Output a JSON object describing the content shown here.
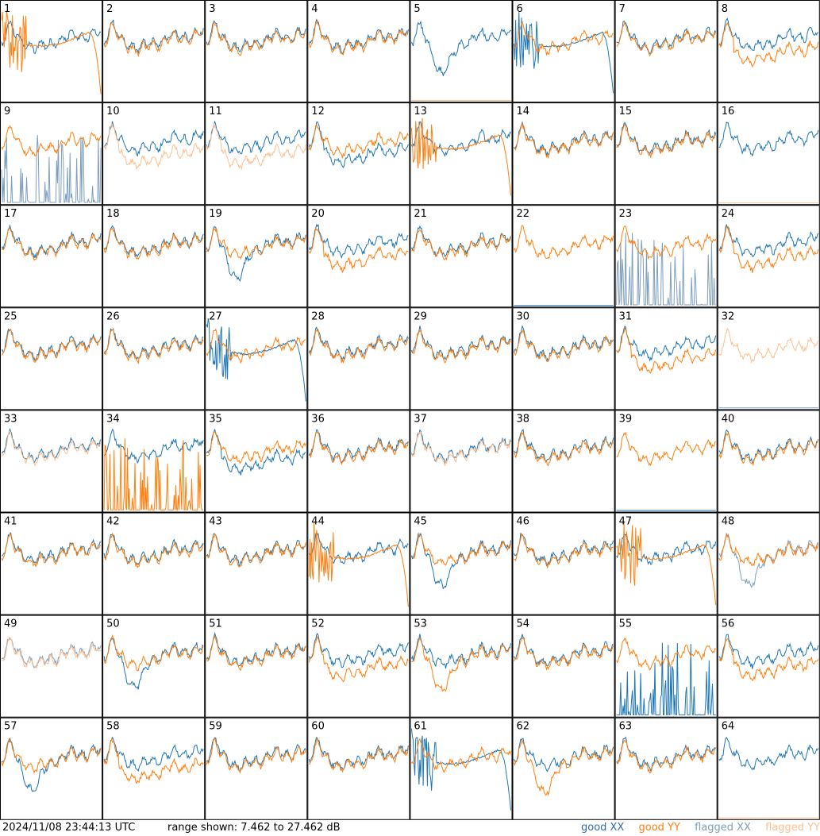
{
  "chart_data": {
    "type": "line",
    "grid": "8x8 small multiples, one panel per tile",
    "panel_labels": [
      "1",
      "2",
      "3",
      "4",
      "5",
      "6",
      "7",
      "8",
      "9",
      "10",
      "11",
      "12",
      "13",
      "14",
      "15",
      "16",
      "17",
      "18",
      "19",
      "20",
      "21",
      "22",
      "23",
      "24",
      "25",
      "26",
      "27",
      "28",
      "29",
      "30",
      "31",
      "32",
      "33",
      "34",
      "35",
      "36",
      "37",
      "38",
      "39",
      "40",
      "41",
      "42",
      "43",
      "44",
      "45",
      "46",
      "47",
      "48",
      "49",
      "50",
      "51",
      "52",
      "53",
      "54",
      "55",
      "56",
      "57",
      "58",
      "59",
      "60",
      "61",
      "62",
      "63",
      "64"
    ],
    "y_range_db": [
      7.462,
      27.462
    ],
    "legend": [
      "good XX",
      "good YY",
      "flagged XX",
      "flagged YY"
    ],
    "colors": {
      "good_xx": "#1f77b4",
      "good_yy": "#ff7f0e",
      "flagged_xx": "#7f9fbf",
      "flagged_yy": "#ffbf8f"
    },
    "panels": {
      "1": {
        "xx": "normal",
        "yy": "rolloff",
        "xx_flag": false,
        "yy_flag": false
      },
      "2": {
        "xx": "normal",
        "yy": "normal",
        "xx_flag": false,
        "yy_flag": false
      },
      "3": {
        "xx": "normal",
        "yy": "normal",
        "xx_flag": false,
        "yy_flag": false
      },
      "4": {
        "xx": "normal",
        "yy": "normal",
        "xx_flag": false,
        "yy_flag": false
      },
      "5": {
        "xx": "dip",
        "yy": "dead",
        "xx_flag": false,
        "yy_flag": true
      },
      "6": {
        "xx": "rolloff",
        "yy": "normal",
        "xx_flag": false,
        "yy_flag": false
      },
      "7": {
        "xx": "normal",
        "yy": "normal",
        "xx_flag": false,
        "yy_flag": false
      },
      "8": {
        "xx": "normal",
        "yy": "low",
        "xx_flag": false,
        "yy_flag": false
      },
      "9": {
        "xx": "spikes",
        "yy": "normal",
        "xx_flag": true,
        "yy_flag": false
      },
      "10": {
        "xx": "normal",
        "yy": "low",
        "xx_flag": false,
        "yy_flag": true
      },
      "11": {
        "xx": "normal",
        "yy": "low",
        "xx_flag": false,
        "yy_flag": true
      },
      "12": {
        "xx": "low",
        "yy": "normal",
        "xx_flag": false,
        "yy_flag": false
      },
      "13": {
        "xx": "normal",
        "yy": "rolloff",
        "xx_flag": false,
        "yy_flag": false
      },
      "14": {
        "xx": "normal",
        "yy": "normal",
        "xx_flag": false,
        "yy_flag": false
      },
      "15": {
        "xx": "normal",
        "yy": "normal",
        "xx_flag": false,
        "yy_flag": false
      },
      "16": {
        "xx": "normal",
        "yy": "dead",
        "xx_flag": false,
        "yy_flag": true
      },
      "17": {
        "xx": "normal",
        "yy": "normal",
        "xx_flag": false,
        "yy_flag": false
      },
      "18": {
        "xx": "normal",
        "yy": "normal",
        "xx_flag": false,
        "yy_flag": false
      },
      "19": {
        "xx": "dip",
        "yy": "normal",
        "xx_flag": false,
        "yy_flag": false
      },
      "20": {
        "xx": "normal",
        "yy": "low",
        "xx_flag": false,
        "yy_flag": false
      },
      "21": {
        "xx": "normal",
        "yy": "normal",
        "xx_flag": false,
        "yy_flag": false
      },
      "22": {
        "xx": "dead",
        "yy": "normal",
        "xx_flag": false,
        "yy_flag": false
      },
      "23": {
        "xx": "spikes",
        "yy": "normal",
        "xx_flag": true,
        "yy_flag": false
      },
      "24": {
        "xx": "normal",
        "yy": "low",
        "xx_flag": false,
        "yy_flag": false
      },
      "25": {
        "xx": "normal",
        "yy": "normal",
        "xx_flag": false,
        "yy_flag": false
      },
      "26": {
        "xx": "normal",
        "yy": "normal",
        "xx_flag": false,
        "yy_flag": false
      },
      "27": {
        "xx": "rolloff",
        "yy": "normal",
        "xx_flag": false,
        "yy_flag": false
      },
      "28": {
        "xx": "normal",
        "yy": "normal",
        "xx_flag": false,
        "yy_flag": false
      },
      "29": {
        "xx": "normal",
        "yy": "normal",
        "xx_flag": false,
        "yy_flag": false
      },
      "30": {
        "xx": "normal",
        "yy": "normal",
        "xx_flag": false,
        "yy_flag": false
      },
      "31": {
        "xx": "normal",
        "yy": "low",
        "xx_flag": false,
        "yy_flag": false
      },
      "32": {
        "xx": "dead",
        "yy": "normal",
        "xx_flag": true,
        "yy_flag": true
      },
      "33": {
        "xx": "normal",
        "yy": "normal",
        "xx_flag": false,
        "yy_flag": true
      },
      "34": {
        "xx": "normal",
        "yy": "spikes",
        "xx_flag": false,
        "yy_flag": false
      },
      "35": {
        "xx": "low",
        "yy": "normal",
        "xx_flag": false,
        "yy_flag": false
      },
      "36": {
        "xx": "normal",
        "yy": "normal",
        "xx_flag": false,
        "yy_flag": false
      },
      "37": {
        "xx": "normal",
        "yy": "normal",
        "xx_flag": false,
        "yy_flag": true
      },
      "38": {
        "xx": "normal",
        "yy": "normal",
        "xx_flag": false,
        "yy_flag": false
      },
      "39": {
        "xx": "dead",
        "yy": "normal",
        "xx_flag": false,
        "yy_flag": false
      },
      "40": {
        "xx": "normal",
        "yy": "normal",
        "xx_flag": false,
        "yy_flag": false
      },
      "41": {
        "xx": "normal",
        "yy": "normal",
        "xx_flag": false,
        "yy_flag": false
      },
      "42": {
        "xx": "normal",
        "yy": "normal",
        "xx_flag": false,
        "yy_flag": false
      },
      "43": {
        "xx": "normal",
        "yy": "normal",
        "xx_flag": false,
        "yy_flag": false
      },
      "44": {
        "xx": "normal",
        "yy": "rolloff",
        "xx_flag": false,
        "yy_flag": false
      },
      "45": {
        "xx": "dip",
        "yy": "normal",
        "xx_flag": false,
        "yy_flag": false
      },
      "46": {
        "xx": "normal",
        "yy": "normal",
        "xx_flag": false,
        "yy_flag": false
      },
      "47": {
        "xx": "normal",
        "yy": "rolloff",
        "xx_flag": false,
        "yy_flag": false
      },
      "48": {
        "xx": "dip",
        "yy": "normal",
        "xx_flag": true,
        "yy_flag": false
      },
      "49": {
        "xx": "normal",
        "yy": "normal",
        "xx_flag": true,
        "yy_flag": true
      },
      "50": {
        "xx": "dip",
        "yy": "normal",
        "xx_flag": false,
        "yy_flag": false
      },
      "51": {
        "xx": "normal",
        "yy": "normal",
        "xx_flag": false,
        "yy_flag": false
      },
      "52": {
        "xx": "normal",
        "yy": "low",
        "xx_flag": false,
        "yy_flag": false
      },
      "53": {
        "xx": "normal",
        "yy": "dip",
        "xx_flag": false,
        "yy_flag": false
      },
      "54": {
        "xx": "normal",
        "yy": "normal",
        "xx_flag": false,
        "yy_flag": false
      },
      "55": {
        "xx": "spikes",
        "yy": "normal",
        "xx_flag": false,
        "yy_flag": false
      },
      "56": {
        "xx": "normal",
        "yy": "low",
        "xx_flag": false,
        "yy_flag": false
      },
      "57": {
        "xx": "dip",
        "yy": "normal",
        "xx_flag": false,
        "yy_flag": false
      },
      "58": {
        "xx": "normal",
        "yy": "low",
        "xx_flag": false,
        "yy_flag": false
      },
      "59": {
        "xx": "normal",
        "yy": "normal",
        "xx_flag": false,
        "yy_flag": false
      },
      "60": {
        "xx": "normal",
        "yy": "normal",
        "xx_flag": false,
        "yy_flag": false
      },
      "61": {
        "xx": "rolloff",
        "yy": "normal",
        "xx_flag": false,
        "yy_flag": false
      },
      "62": {
        "xx": "normal",
        "yy": "dip",
        "xx_flag": false,
        "yy_flag": false
      },
      "63": {
        "xx": "normal",
        "yy": "normal",
        "xx_flag": false,
        "yy_flag": false
      },
      "64": {
        "xx": "normal",
        "yy": "dead",
        "xx_flag": false,
        "yy_flag": true
      }
    }
  },
  "footer": {
    "timestamp": "2024/11/08 23:44:13 UTC",
    "range": "range shown: 7.462 to 27.462 dB",
    "legend_good_xx": "good XX",
    "legend_good_yy": "good YY",
    "legend_flagged_xx": "flagged XX",
    "legend_flagged_yy": "flagged YY"
  }
}
